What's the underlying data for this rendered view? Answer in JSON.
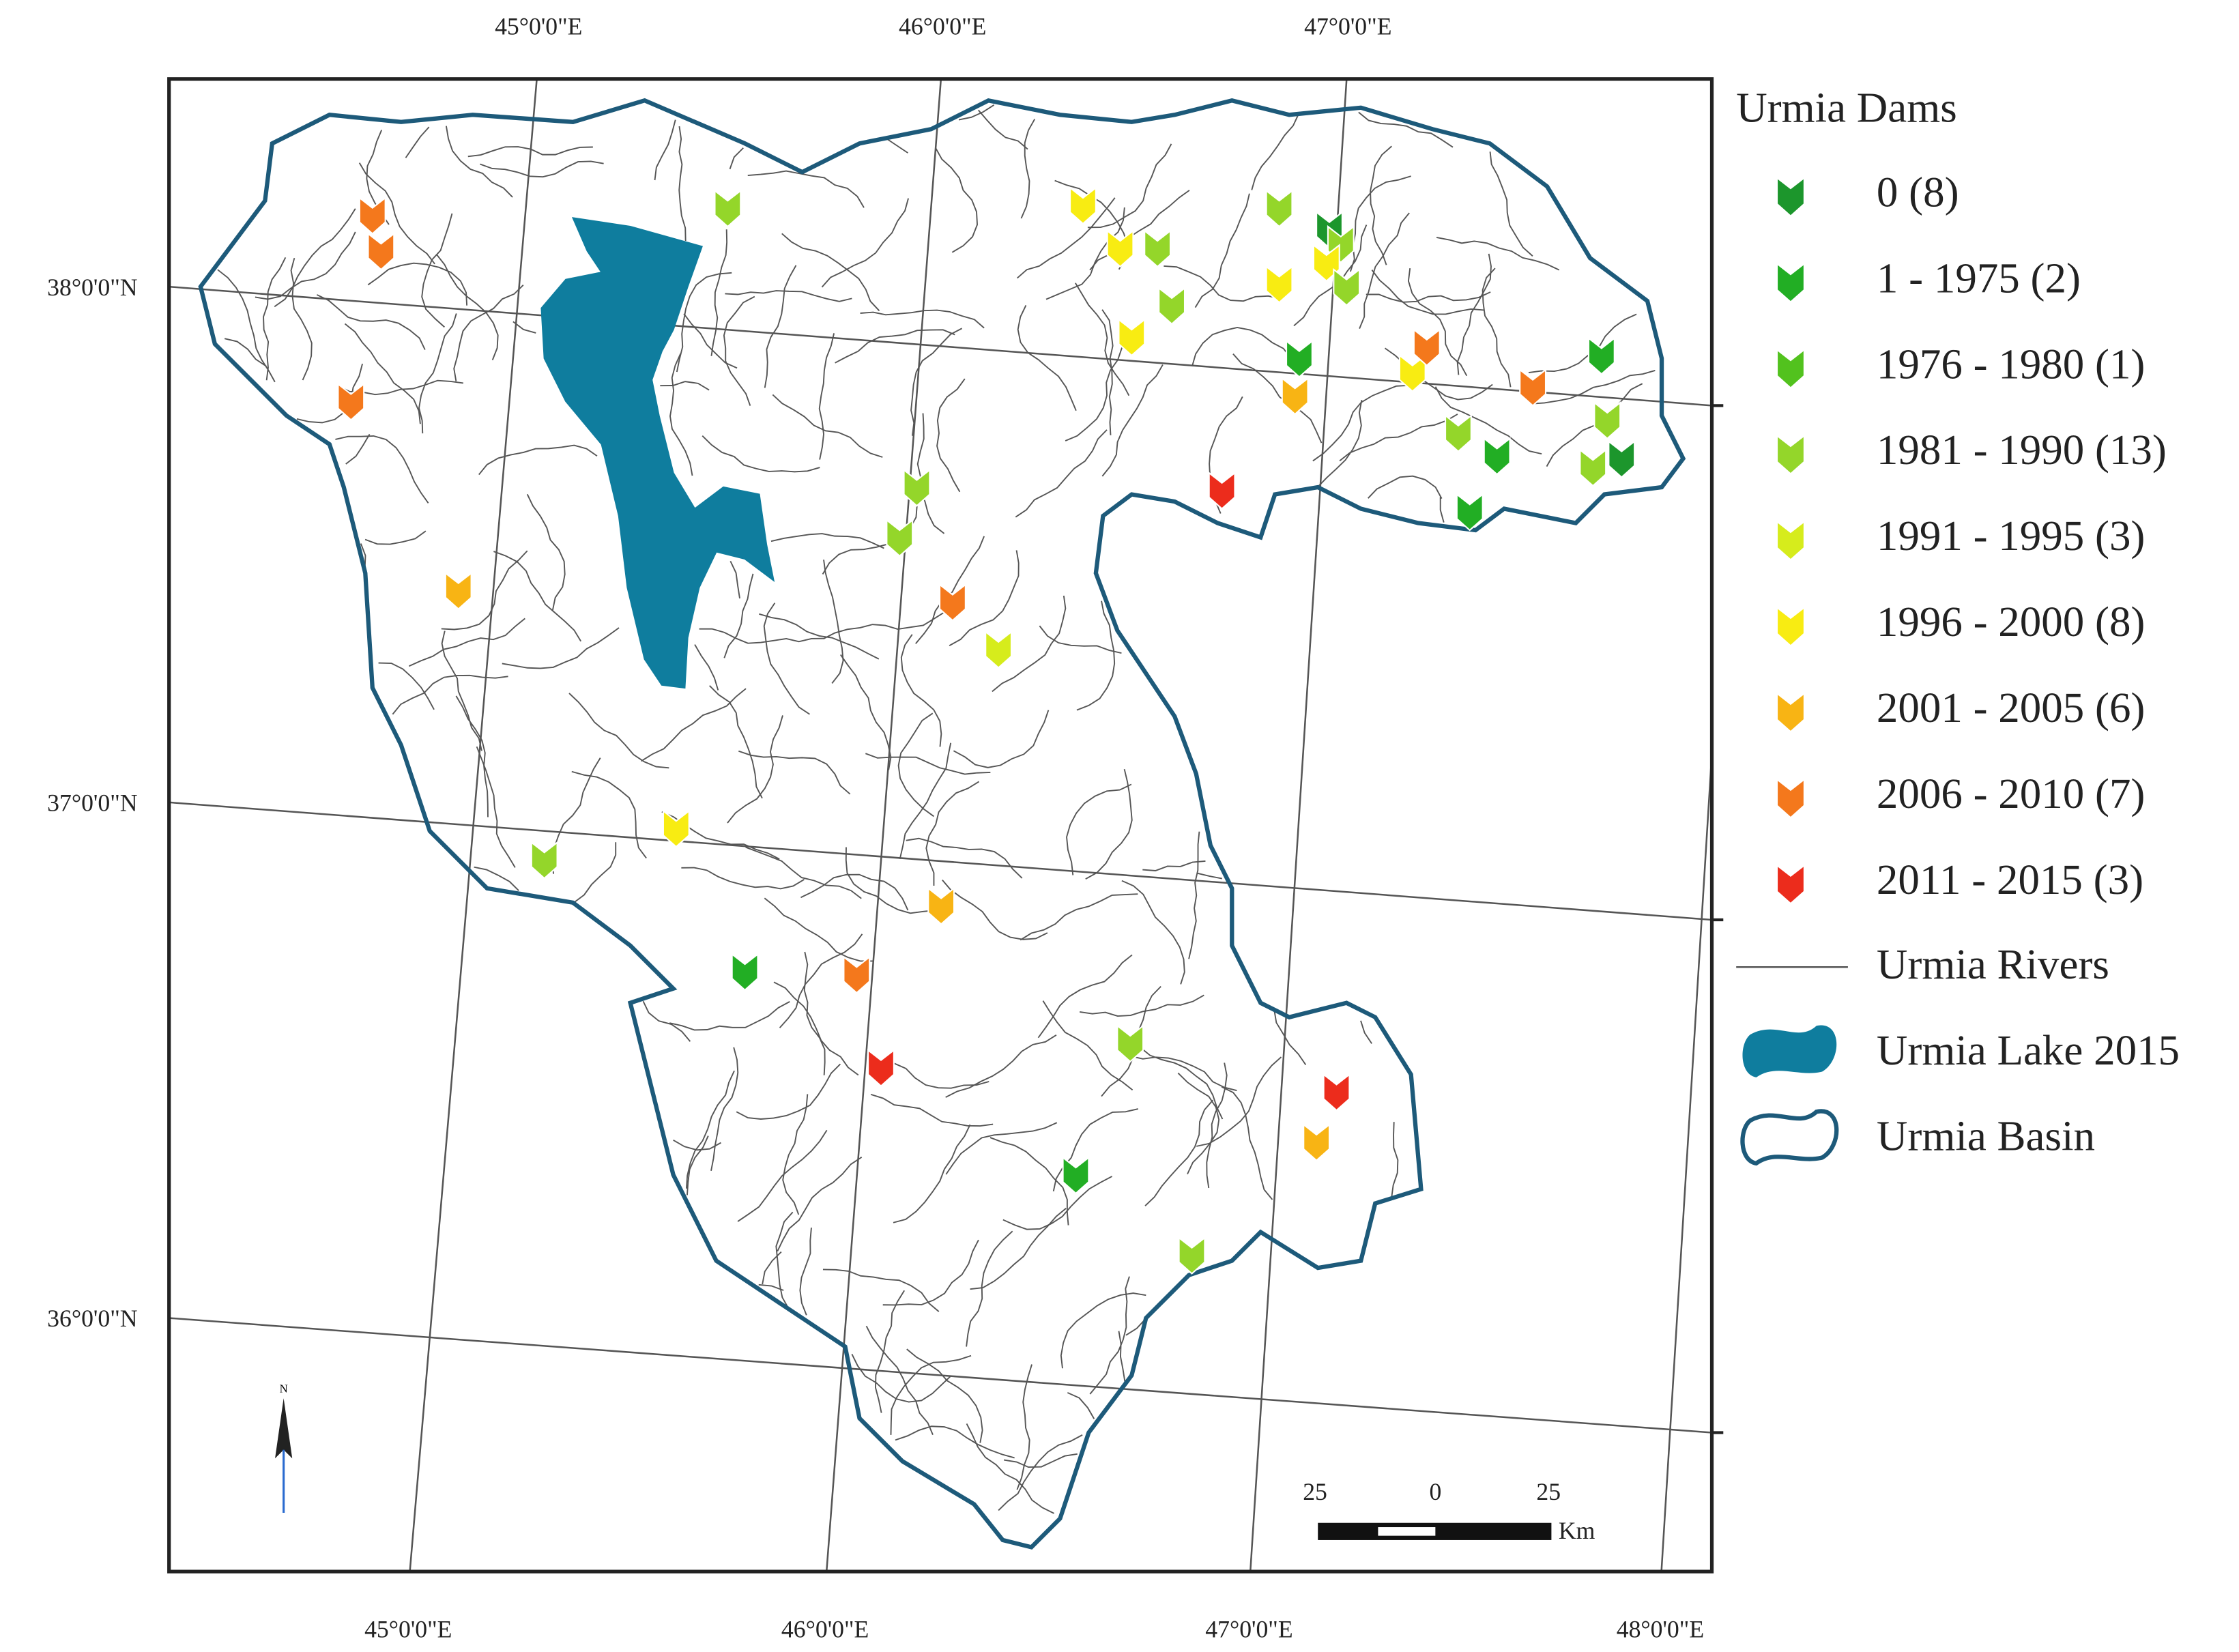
{
  "map": {
    "top_labels": [
      "45°0'0\"E",
      "46°0'0\"E",
      "47°0'0\"E"
    ],
    "bottom_labels": [
      "45°0'0\"E",
      "46°0'0\"E",
      "47°0'0\"E",
      "48°0'0\"E"
    ],
    "left_labels": [
      "38°0'0\"N",
      "37°0'0\"N",
      "36°0'0\"N"
    ],
    "scale": {
      "labels": [
        "25",
        "0",
        "25"
      ],
      "unit": "Km"
    },
    "north": "N"
  },
  "legend": {
    "title": "Urmia Dams",
    "items": [
      {
        "label": "0 (8)",
        "color": "#1c962c"
      },
      {
        "label": "1 - 1975 (2)",
        "color": "#22ae24"
      },
      {
        "label": "1976 - 1980 (1)",
        "color": "#52c21e"
      },
      {
        "label": "1981 - 1990 (13)",
        "color": "#94d62a"
      },
      {
        "label": "1991 - 1995 (3)",
        "color": "#d6ec1c"
      },
      {
        "label": "1996 - 2000 (8)",
        "color": "#f8ec12"
      },
      {
        "label": "2001 - 2005 (6)",
        "color": "#f8b414"
      },
      {
        "label": "2006 - 2010 (7)",
        "color": "#f4781c"
      },
      {
        "label": "2011 - 2015 (3)",
        "color": "#ec2c1c"
      }
    ],
    "rivers": "Urmia Rivers",
    "lake": "Urmia Lake 2015",
    "basin": "Urmia Basin"
  }
}
